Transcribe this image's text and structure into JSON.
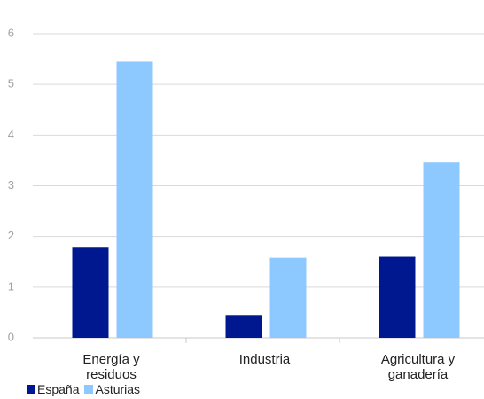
{
  "chart_data": {
    "type": "bar",
    "categories": [
      "Energía y residuos",
      "Industria",
      "Agricultura y ganadería"
    ],
    "series": [
      {
        "name": "España",
        "color": "#00188f",
        "values": [
          1.78,
          0.45,
          1.6
        ]
      },
      {
        "name": "Asturias",
        "color": "#8dc8ff",
        "values": [
          5.45,
          1.58,
          3.46
        ]
      }
    ],
    "ylim": [
      0,
      6
    ],
    "yticks": [
      0,
      1,
      2,
      3,
      4,
      5,
      6
    ],
    "grid": true
  }
}
